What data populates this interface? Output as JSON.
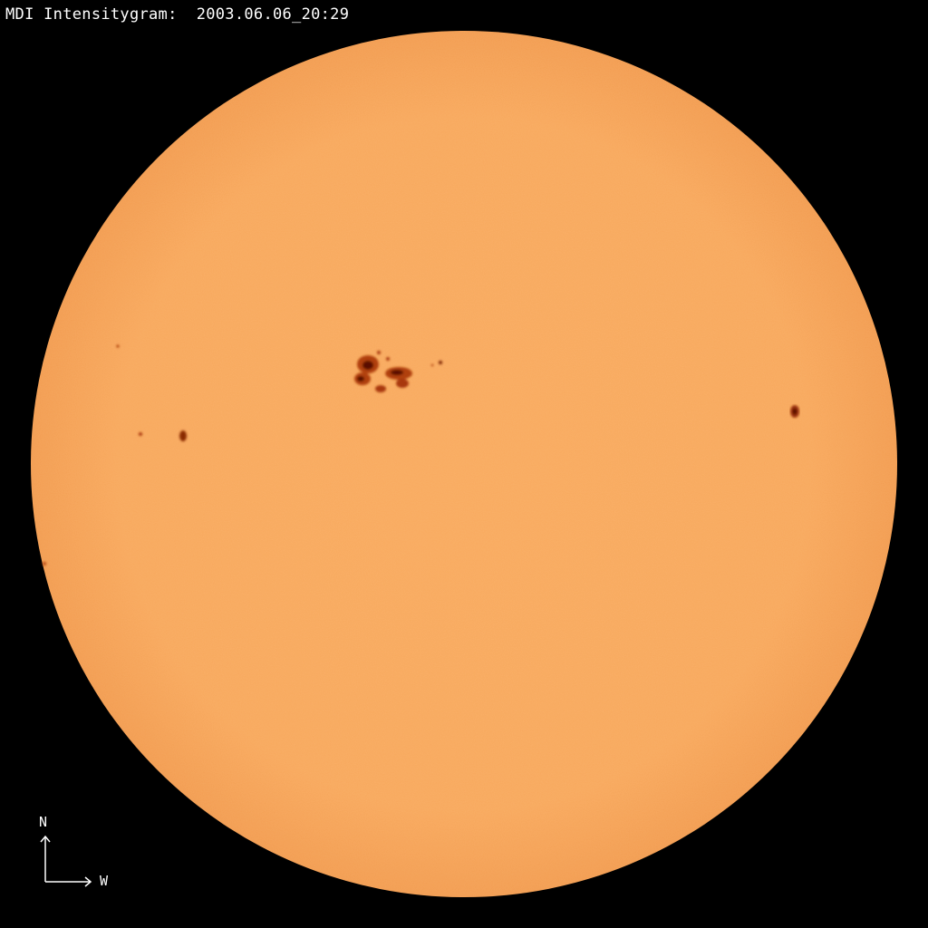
{
  "header": {
    "title": "MDI Intensitygram:  2003.06.06_20:29"
  },
  "compass": {
    "north_label": "N",
    "west_label": "W"
  },
  "colors": {
    "background": "#000000",
    "disk_center": "#f9aa5e",
    "disk_limb": "#f09a4e",
    "sunspot_umbra": "#5a0d00",
    "sunspot_penumbra": "#b0400c",
    "text": "#ffffff"
  }
}
